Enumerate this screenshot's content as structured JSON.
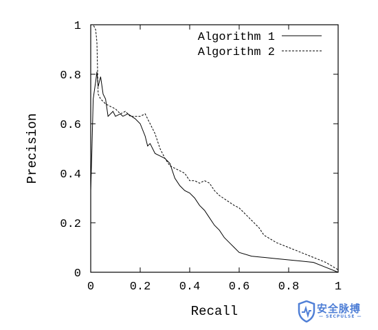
{
  "chart_data": {
    "type": "line",
    "title": "",
    "xlabel": "Recall",
    "ylabel": "Precision",
    "xlim": [
      0,
      1
    ],
    "ylim": [
      0,
      1
    ],
    "grid": false,
    "legend_position": "top-right",
    "x_ticks": [
      {
        "value": 0,
        "label": "0"
      },
      {
        "value": 0.2,
        "label": "0.2"
      },
      {
        "value": 0.4,
        "label": "0.4"
      },
      {
        "value": 0.6,
        "label": "0.6"
      },
      {
        "value": 0.8,
        "label": "0.8"
      },
      {
        "value": 1,
        "label": "1"
      }
    ],
    "y_ticks": [
      {
        "value": 0,
        "label": "0"
      },
      {
        "value": 0.2,
        "label": "0.2"
      },
      {
        "value": 0.4,
        "label": "0.4"
      },
      {
        "value": 0.6,
        "label": "0.6"
      },
      {
        "value": 0.8,
        "label": "0.8"
      },
      {
        "value": 1,
        "label": "1"
      }
    ],
    "series": [
      {
        "name": "Algorithm 1",
        "style": "solid",
        "x": [
          0.0,
          0.005,
          0.01,
          0.02,
          0.025,
          0.03,
          0.04,
          0.05,
          0.06,
          0.07,
          0.09,
          0.1,
          0.12,
          0.13,
          0.15,
          0.18,
          0.2,
          0.22,
          0.23,
          0.24,
          0.26,
          0.28,
          0.3,
          0.32,
          0.34,
          0.36,
          0.38,
          0.4,
          0.42,
          0.44,
          0.46,
          0.48,
          0.5,
          0.52,
          0.54,
          0.56,
          0.58,
          0.6,
          0.65,
          0.7,
          0.75,
          0.8,
          0.85,
          0.9,
          0.95,
          1.0
        ],
        "y": [
          0.33,
          0.5,
          0.7,
          0.77,
          0.81,
          0.75,
          0.79,
          0.72,
          0.7,
          0.63,
          0.65,
          0.63,
          0.64,
          0.63,
          0.64,
          0.62,
          0.6,
          0.55,
          0.51,
          0.52,
          0.48,
          0.47,
          0.46,
          0.44,
          0.38,
          0.35,
          0.33,
          0.32,
          0.3,
          0.27,
          0.25,
          0.22,
          0.19,
          0.17,
          0.14,
          0.12,
          0.1,
          0.08,
          0.065,
          0.06,
          0.055,
          0.05,
          0.045,
          0.04,
          0.02,
          0.0
        ]
      },
      {
        "name": "Algorithm 2",
        "style": "dashed",
        "x": [
          0.0,
          0.005,
          0.01,
          0.015,
          0.02,
          0.025,
          0.03,
          0.04,
          0.05,
          0.06,
          0.08,
          0.1,
          0.12,
          0.14,
          0.16,
          0.18,
          0.2,
          0.22,
          0.24,
          0.26,
          0.28,
          0.3,
          0.32,
          0.34,
          0.36,
          0.38,
          0.4,
          0.42,
          0.44,
          0.46,
          0.48,
          0.5,
          0.52,
          0.55,
          0.58,
          0.6,
          0.62,
          0.64,
          0.66,
          0.68,
          0.7,
          0.75,
          0.8,
          0.85,
          0.9,
          0.95,
          1.0
        ],
        "y": [
          1.0,
          1.0,
          1.0,
          0.99,
          0.98,
          0.93,
          0.72,
          0.7,
          0.69,
          0.68,
          0.67,
          0.66,
          0.64,
          0.65,
          0.63,
          0.63,
          0.63,
          0.64,
          0.6,
          0.56,
          0.5,
          0.46,
          0.43,
          0.42,
          0.41,
          0.4,
          0.37,
          0.37,
          0.36,
          0.37,
          0.36,
          0.33,
          0.31,
          0.29,
          0.27,
          0.26,
          0.24,
          0.22,
          0.2,
          0.18,
          0.15,
          0.12,
          0.1,
          0.08,
          0.06,
          0.04,
          0.01
        ]
      }
    ]
  },
  "watermark": {
    "title": "安全脉搏",
    "subtitle": "— SECPULSE —"
  }
}
